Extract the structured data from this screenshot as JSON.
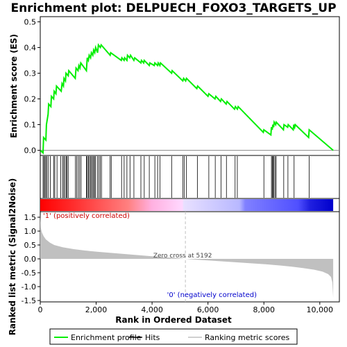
{
  "chart_data": [
    {
      "type": "line",
      "title": "Enrichment plot: DELPUECH_FOXO3_TARGETS_UP",
      "ylabel": "Enrichment score (ES)",
      "xlim": [
        0,
        10700
      ],
      "ylim": [
        -0.02,
        0.52
      ],
      "yticks": [
        "0.0",
        "0.1",
        "0.2",
        "0.3",
        "0.4",
        "0.5"
      ],
      "series": [
        {
          "name": "Enrichment profile",
          "color": "#00ee00",
          "x": [
            0,
            100,
            120,
            200,
            220,
            280,
            300,
            380,
            400,
            480,
            500,
            560,
            580,
            750,
            780,
            830,
            850,
            900,
            920,
            1000,
            1020,
            1250,
            1280,
            1350,
            1380,
            1420,
            1450,
            1650,
            1680,
            1720,
            1750,
            1800,
            1830,
            1880,
            1910,
            1950,
            1980,
            2050,
            2080,
            2150,
            2180,
            2500,
            2520,
            2900,
            2920,
            3000,
            3020,
            3100,
            3120,
            3200,
            3230,
            3350,
            3380,
            3600,
            3620,
            3700,
            3720,
            3900,
            3920,
            4080,
            4100,
            4200,
            4220,
            4280,
            4300,
            4700,
            4720,
            5100,
            5130,
            5200,
            5230,
            5600,
            5630,
            6000,
            6030,
            6250,
            6280,
            6450,
            6480,
            6650,
            6680,
            6950,
            6980,
            7050,
            7080,
            7980,
            8000,
            8250,
            8270,
            8300,
            8320,
            8350,
            8370,
            8420,
            8440,
            8700,
            8720,
            8850,
            8870,
            9050,
            9070,
            9100,
            9120,
            9600,
            9620,
            10480
          ],
          "y": [
            0.0,
            -0.01,
            0.05,
            0.04,
            0.1,
            0.14,
            0.18,
            0.17,
            0.21,
            0.2,
            0.23,
            0.22,
            0.25,
            0.23,
            0.26,
            0.25,
            0.28,
            0.27,
            0.3,
            0.29,
            0.31,
            0.28,
            0.32,
            0.31,
            0.33,
            0.32,
            0.34,
            0.31,
            0.36,
            0.35,
            0.37,
            0.36,
            0.38,
            0.37,
            0.39,
            0.38,
            0.4,
            0.38,
            0.41,
            0.4,
            0.41,
            0.37,
            0.38,
            0.35,
            0.36,
            0.35,
            0.36,
            0.35,
            0.37,
            0.36,
            0.37,
            0.35,
            0.36,
            0.34,
            0.35,
            0.34,
            0.35,
            0.33,
            0.34,
            0.33,
            0.34,
            0.33,
            0.34,
            0.33,
            0.34,
            0.3,
            0.31,
            0.27,
            0.28,
            0.27,
            0.28,
            0.24,
            0.25,
            0.21,
            0.22,
            0.2,
            0.21,
            0.19,
            0.2,
            0.18,
            0.19,
            0.16,
            0.17,
            0.16,
            0.17,
            0.07,
            0.08,
            0.06,
            0.09,
            0.08,
            0.1,
            0.09,
            0.11,
            0.1,
            0.11,
            0.08,
            0.1,
            0.09,
            0.1,
            0.08,
            0.1,
            0.09,
            0.1,
            0.05,
            0.08,
            0.0
          ]
        }
      ]
    },
    {
      "type": "scatter",
      "name": "Hits",
      "xlim": [
        0,
        10700
      ],
      "x": [
        100,
        130,
        170,
        200,
        240,
        290,
        360,
        480,
        520,
        600,
        730,
        800,
        840,
        880,
        930,
        960,
        1000,
        1260,
        1300,
        1360,
        1410,
        1460,
        1650,
        1680,
        1720,
        1750,
        1800,
        1830,
        1870,
        1910,
        1940,
        1980,
        2050,
        2100,
        2150,
        2190,
        2500,
        2540,
        2910,
        3000,
        3100,
        3210,
        3350,
        3600,
        3720,
        3900,
        4100,
        4200,
        4280,
        4700,
        5100,
        5150,
        5230,
        5620,
        6030,
        6260,
        6470,
        6660,
        6970,
        7050,
        8000,
        8270,
        8300,
        8330,
        8360,
        8400,
        8440,
        8710,
        8860,
        9080,
        9620
      ]
    },
    {
      "type": "area",
      "ylabel": "Ranked list metric (Signal2Noise)",
      "xlabel": "Rank in Ordered Dataset",
      "xlim": [
        0,
        10700
      ],
      "ylim": [
        -1.55,
        1.7
      ],
      "yticks": [
        "-1.5",
        "-1.0",
        "-0.5",
        "0.0",
        "0.5",
        "1.0",
        "1.5"
      ],
      "xticks": [
        "0",
        "2,000",
        "4,000",
        "6,000",
        "8,000",
        "10,000"
      ],
      "series": [
        {
          "name": "Ranking metric scores",
          "color": "#c0c0c0",
          "x": [
            0,
            20,
            60,
            120,
            200,
            350,
            500,
            800,
            1200,
            1600,
            2000,
            2600,
            3200,
            3800,
            4400,
            5000,
            5192,
            5600,
            6200,
            6800,
            7400,
            8000,
            8600,
            9000,
            9400,
            9800,
            10100,
            10300,
            10400,
            10450,
            10480
          ],
          "y": [
            1.6,
            1.12,
            0.95,
            0.82,
            0.7,
            0.58,
            0.5,
            0.42,
            0.35,
            0.3,
            0.26,
            0.21,
            0.16,
            0.11,
            0.06,
            0.02,
            0.0,
            -0.03,
            -0.07,
            -0.11,
            -0.15,
            -0.19,
            -0.24,
            -0.28,
            -0.33,
            -0.39,
            -0.46,
            -0.55,
            -0.65,
            -0.85,
            -1.4
          ]
        }
      ],
      "annotations": [
        "'1' (positively correlated)",
        "Zero cross at 5192",
        "'0' (negatively correlated)"
      ],
      "zero_cross": 5192
    }
  ],
  "legend": {
    "items": [
      {
        "label": "Enrichment profile",
        "color": "#00ee00",
        "swatch": "line"
      },
      {
        "label": "Hits",
        "color": "#000000",
        "swatch": "line"
      },
      {
        "label": "Ranking metric scores",
        "color": "#c0c0c0",
        "swatch": "line"
      }
    ]
  },
  "colors": {
    "profile": "#00ee00",
    "hits": "#000000",
    "metric_fill": "#c0c0c0",
    "zero_line": "#c0c0c0",
    "positive_note": "#cc0000",
    "negative_note": "#0000cc"
  },
  "rank_bar": {
    "stops": [
      {
        "at": 0.0,
        "color": "#ff0000"
      },
      {
        "at": 0.12,
        "color": "#ff3030"
      },
      {
        "at": 0.3,
        "color": "#ff8080"
      },
      {
        "at": 0.38,
        "color": "#ffb0e0"
      },
      {
        "at": 0.485,
        "color": "#ffd8ff"
      },
      {
        "at": 0.49,
        "color": "#e8e0ff"
      },
      {
        "at": 0.68,
        "color": "#b8b8ff"
      },
      {
        "at": 0.7,
        "color": "#8080ff"
      },
      {
        "at": 0.88,
        "color": "#5050ff"
      },
      {
        "at": 0.92,
        "color": "#2020e0"
      },
      {
        "at": 1.0,
        "color": "#0000cc"
      }
    ]
  }
}
